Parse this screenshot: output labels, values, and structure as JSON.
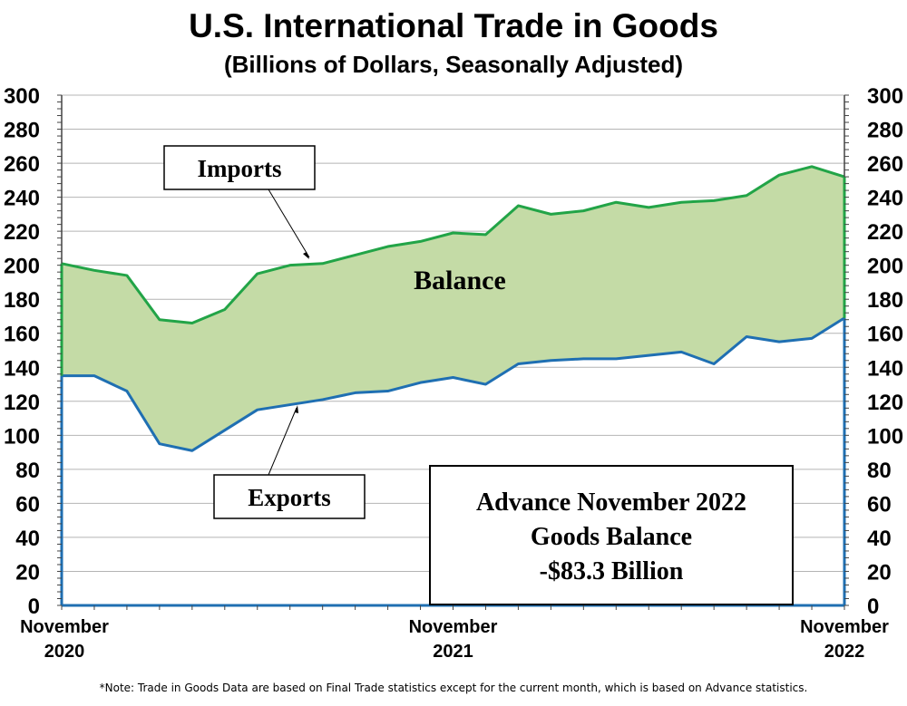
{
  "chart_data": {
    "type": "area",
    "title": "U.S. International Trade in Goods",
    "subtitle": "(Billions of Dollars, Seasonally Adjusted)",
    "ylim": [
      0,
      300
    ],
    "yticks": [
      0,
      20,
      40,
      60,
      80,
      100,
      120,
      140,
      160,
      180,
      200,
      220,
      240,
      260,
      280,
      300
    ],
    "grid": true,
    "x_axis_labels": [
      {
        "month": "November",
        "year": "2020",
        "index": 0
      },
      {
        "month": "November",
        "year": "2021",
        "index": 12
      },
      {
        "month": "November",
        "year": "2022",
        "index": 24
      }
    ],
    "x": [
      "Nov 2020",
      "Dec 2020",
      "Jan 2021",
      "Feb 2021",
      "Mar 2021",
      "Apr 2021",
      "May 2021",
      "Jun 2021",
      "Jul 2021",
      "Aug 2021",
      "Sep 2021",
      "Oct 2021",
      "Nov 2021",
      "Dec 2021",
      "Jan 2022",
      "Feb 2022",
      "Mar 2022",
      "Apr 2022",
      "May 2022",
      "Jun 2022",
      "Jul 2022",
      "Aug 2022",
      "Sep 2022",
      "Oct 2022",
      "Nov 2022"
    ],
    "series": [
      {
        "name": "Imports",
        "color": "#22a447",
        "values": [
          201,
          197,
          194,
          168,
          166,
          174,
          195,
          200,
          201,
          206,
          211,
          214,
          219,
          218,
          235,
          230,
          232,
          237,
          234,
          237,
          238,
          241,
          253,
          258,
          252
        ]
      },
      {
        "name": "Exports",
        "color": "#1f6fb2",
        "values": [
          135,
          135,
          126,
          95,
          91,
          103,
          115,
          118,
          121,
          125,
          126,
          131,
          134,
          130,
          142,
          144,
          145,
          145,
          147,
          149,
          142,
          158,
          155,
          157,
          169
        ]
      }
    ],
    "fill_color": "#c4dba6",
    "annotations": {
      "imports_label": "Imports",
      "exports_label": "Exports",
      "balance_label": "Balance",
      "box_line1": "Advance November 2022",
      "box_line2": "Goods Balance",
      "box_line3": "-$83.3 Billion"
    }
  },
  "note": "*Note: Trade in Goods Data are based on Final Trade statistics except for the current month, which is based on Advance statistics."
}
